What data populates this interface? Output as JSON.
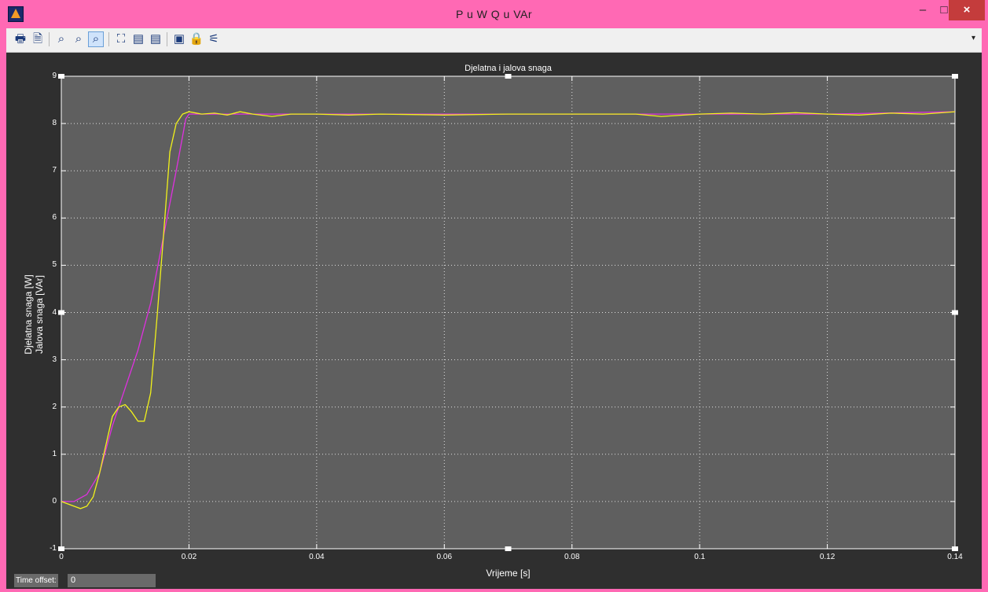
{
  "window": {
    "title": "P u W Q u VAr",
    "min_label": "–",
    "max_label": "□",
    "close_label": "×"
  },
  "toolbar": {
    "buttons": [
      {
        "name": "print-icon",
        "glyph": "🖶"
      },
      {
        "name": "page-setup-icon",
        "glyph": "🗎"
      },
      {
        "name": "zoom-icon",
        "glyph": "⌕"
      },
      {
        "name": "zoom-x-icon",
        "glyph": "⌕"
      },
      {
        "name": "zoom-y-icon",
        "glyph": "⌕"
      },
      {
        "name": "autoscale-icon",
        "glyph": "⛶"
      },
      {
        "name": "save-axes-icon",
        "glyph": "▤"
      },
      {
        "name": "restore-axes-icon",
        "glyph": "▤"
      },
      {
        "name": "parameters-icon",
        "glyph": "▣"
      },
      {
        "name": "lock-icon",
        "glyph": "🔒"
      },
      {
        "name": "signal-selection-icon",
        "glyph": "⚟"
      }
    ],
    "dropdown_glyph": "▾"
  },
  "time_offset": {
    "label": "Time offset:",
    "value": "0"
  },
  "chart_data": {
    "type": "line",
    "title": "Djelatna i jalova snaga",
    "xlabel": "Vrijeme [s]",
    "ylabel_lines": [
      "Djelatna snaga [W]",
      "Jalova snaga [VAr]"
    ],
    "xlim": [
      0,
      0.14
    ],
    "ylim": [
      -1,
      9
    ],
    "xticks": [
      "0",
      "0.02",
      "0.04",
      "0.06",
      "0.08",
      "0.1",
      "0.12",
      "0.14"
    ],
    "xtick_values": [
      0,
      0.02,
      0.04,
      0.06,
      0.08,
      0.1,
      0.12,
      0.14
    ],
    "yticks": [
      "-1",
      "0",
      "1",
      "2",
      "3",
      "4",
      "5",
      "6",
      "7",
      "8",
      "9"
    ],
    "ytick_values": [
      -1,
      0,
      1,
      2,
      3,
      4,
      5,
      6,
      7,
      8,
      9
    ],
    "grid": true,
    "background": "#5f5f5f",
    "series": [
      {
        "color": "#e030e0",
        "x": [
          0,
          0.002,
          0.004,
          0.006,
          0.008,
          0.01,
          0.012,
          0.014,
          0.016,
          0.018,
          0.0195,
          0.02,
          0.025,
          0.03,
          0.04,
          0.06,
          0.08,
          0.1,
          0.12,
          0.14
        ],
        "y": [
          0,
          0,
          0.15,
          0.6,
          1.6,
          2.4,
          3.2,
          4.2,
          5.6,
          7.0,
          8.1,
          8.2,
          8.2,
          8.2,
          8.2,
          8.2,
          8.2,
          8.2,
          8.2,
          8.25
        ]
      },
      {
        "color": "#f2f21a",
        "x": [
          0,
          0.001,
          0.002,
          0.003,
          0.004,
          0.005,
          0.006,
          0.007,
          0.008,
          0.009,
          0.01,
          0.011,
          0.012,
          0.013,
          0.014,
          0.015,
          0.016,
          0.017,
          0.018,
          0.019,
          0.02,
          0.022,
          0.024,
          0.026,
          0.028,
          0.03,
          0.033,
          0.036,
          0.04,
          0.045,
          0.05,
          0.06,
          0.07,
          0.08,
          0.09,
          0.094,
          0.1,
          0.105,
          0.11,
          0.115,
          0.12,
          0.125,
          0.13,
          0.135,
          0.14
        ],
        "y": [
          0,
          -0.05,
          -0.1,
          -0.15,
          -0.1,
          0.1,
          0.6,
          1.2,
          1.8,
          2.0,
          2.05,
          1.9,
          1.7,
          1.7,
          2.3,
          3.9,
          5.6,
          7.4,
          8.0,
          8.2,
          8.25,
          8.2,
          8.22,
          8.18,
          8.25,
          8.2,
          8.15,
          8.2,
          8.2,
          8.18,
          8.2,
          8.18,
          8.2,
          8.2,
          8.2,
          8.15,
          8.2,
          8.22,
          8.2,
          8.23,
          8.2,
          8.18,
          8.22,
          8.2,
          8.25
        ]
      }
    ]
  }
}
